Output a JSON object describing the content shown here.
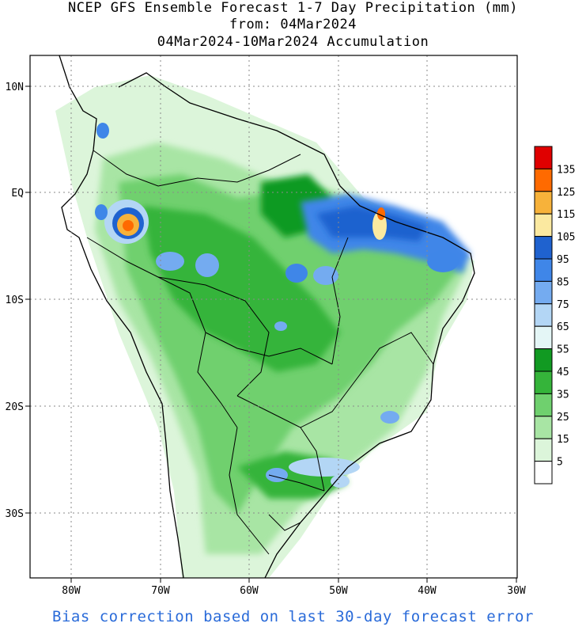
{
  "title": {
    "line1": "NCEP GFS Ensemble Forecast 1-7 Day Precipitation (mm)",
    "line2": "from: 04Mar2024",
    "line3": "04Mar2024-10Mar2024 Accumulation"
  },
  "footer": "Bias correction based on last 30-day forecast error",
  "axes": {
    "lon_ticks": [
      "80W",
      "70W",
      "60W",
      "50W",
      "40W",
      "30W"
    ],
    "lat_ticks": [
      "10N",
      "EQ",
      "10S",
      "20S",
      "30S"
    ]
  },
  "legend": {
    "labels": [
      "135",
      "125",
      "115",
      "105",
      "95",
      "85",
      "75",
      "65",
      "55",
      "45",
      "35",
      "25",
      "15",
      "5"
    ],
    "colors": [
      "#e00000",
      "#ff6a00",
      "#f7b23a",
      "#fbe9a0",
      "#1f62cf",
      "#3f86e8",
      "#74abf0",
      "#b3d6f5",
      "#e4f6f6",
      "#119a22",
      "#35b43a",
      "#6fd06e",
      "#a8e5a4",
      "#dcf5da",
      "#ffffff"
    ]
  },
  "colors": {
    "footer_text": "#2a6bd9",
    "grid": "#8a8a8a"
  }
}
